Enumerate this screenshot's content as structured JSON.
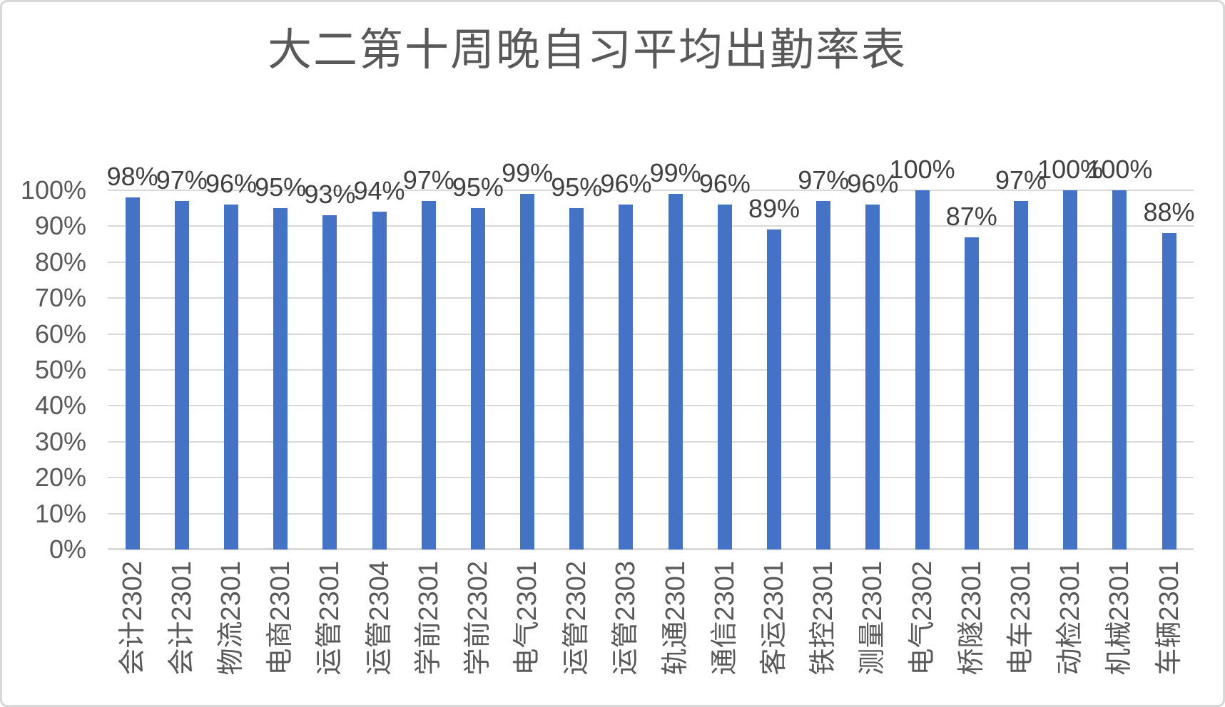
{
  "chart_data": {
    "type": "bar",
    "title": "大二第十周晚自习平均出勤率表",
    "categories": [
      "会计2302",
      "会计2301",
      "物流2301",
      "电商2301",
      "运管2301",
      "运管2304",
      "学前2301",
      "学前2302",
      "电气2301",
      "运管2302",
      "运管2303",
      "轨通2301",
      "通信2301",
      "客运2301",
      "铁控2301",
      "测量2301",
      "电气2302",
      "桥隧2301",
      "电车2301",
      "动检2301",
      "机械2301",
      "车辆2301"
    ],
    "values": [
      98,
      97,
      96,
      95,
      93,
      94,
      97,
      95,
      99,
      95,
      96,
      99,
      96,
      89,
      97,
      96,
      100,
      87,
      97,
      100,
      100,
      88
    ],
    "data_labels": [
      "98%",
      "97%",
      "96%",
      "95%",
      "93%",
      "94%",
      "97%",
      "95%",
      "99%",
      "95%",
      "96%",
      "99%",
      "96%",
      "89%",
      "97%",
      "96%",
      "100%",
      "87%",
      "97%",
      "100%",
      "100%",
      "88%"
    ],
    "y_ticks": [
      "0%",
      "10%",
      "20%",
      "30%",
      "40%",
      "50%",
      "60%",
      "70%",
      "80%",
      "90%",
      "100%"
    ],
    "ylim": [
      0,
      100
    ],
    "xlabel": "",
    "ylabel": "",
    "grid": true,
    "legend": "none",
    "data_label_position": "outside-end",
    "colors": {
      "bar": "#4472C4",
      "gridline": "#D9D9D9",
      "title_text": "#595959",
      "axis_text": "#595959",
      "data_label_text": "#404040",
      "frame_border": "#D8D8D8",
      "background": "#FFFFFF"
    }
  }
}
